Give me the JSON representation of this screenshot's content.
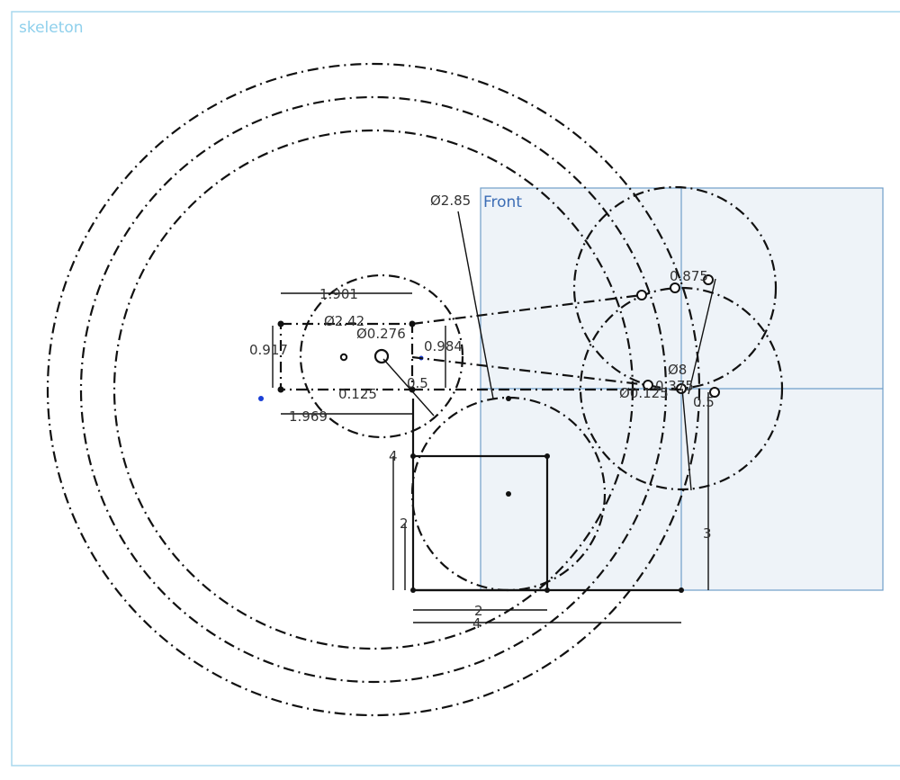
{
  "sketch": {
    "name": "skeleton"
  },
  "plane": {
    "label": "Front"
  },
  "colors": {
    "frame": "#a9d8ee",
    "plane_fill": "#eef3f8",
    "plane_stroke": "#6f9ec9",
    "geometry": "#111111",
    "dimension_text": "#333333",
    "point_blue": "#1a3fd6"
  },
  "dimensions": {
    "d_2_85": "Ø2.85",
    "d_1_901": "1.901",
    "d_2_42": "Ø2.42",
    "d_0_276": "Ø0.276",
    "d_0_917": "0.917",
    "d_0_984": "0.984",
    "d_0_125": "0.125",
    "d_0_5": "0.5",
    "d_1_969": "1.969",
    "d_4_v": "4",
    "d_2_v": "2",
    "d_2_h": "2",
    "d_4_h": "4",
    "d_3_v": "3",
    "d_0_875": "0.875",
    "d_8": "Ø8",
    "d_0_125b": "Ø0.125",
    "d_0_375": "0.375",
    "d_0_5b": "0.5"
  }
}
